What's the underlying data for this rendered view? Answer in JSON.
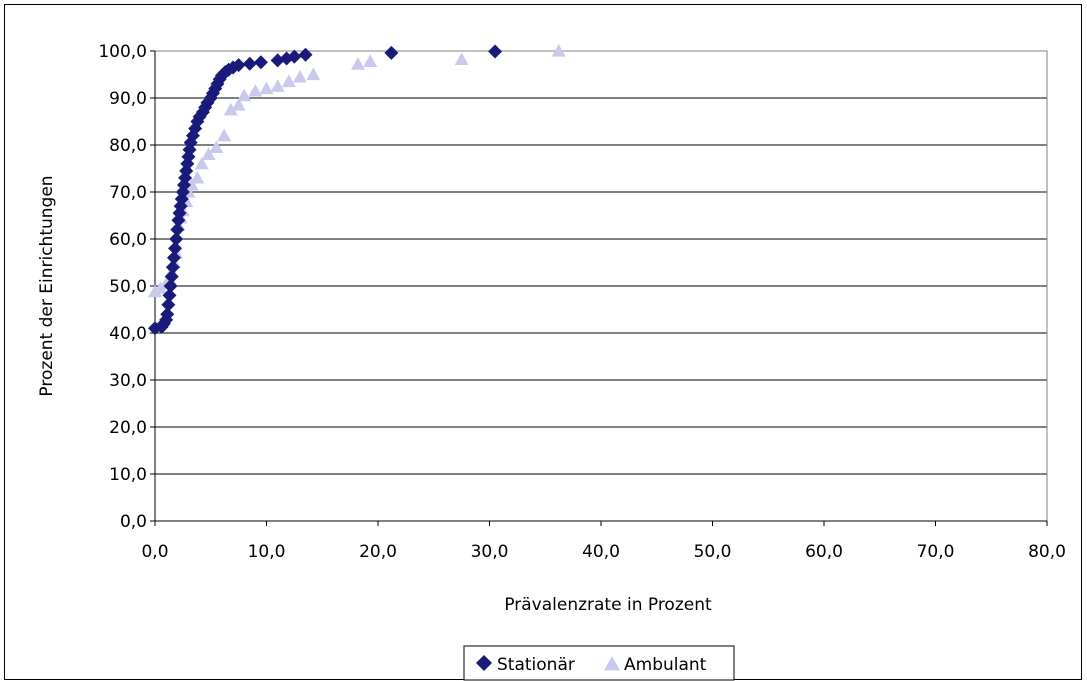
{
  "chart_data": {
    "type": "scatter",
    "title": "",
    "xlabel": "Prävalenzrate in Prozent",
    "ylabel": "Prozent der Einrichtungen",
    "xlim": [
      0,
      80
    ],
    "ylim": [
      0,
      100
    ],
    "x_ticks": [
      "0,0",
      "10,0",
      "20,0",
      "30,0",
      "40,0",
      "50,0",
      "60,0",
      "70,0",
      "80,0"
    ],
    "y_ticks": [
      "0,0",
      "10,0",
      "20,0",
      "30,0",
      "40,0",
      "50,0",
      "60,0",
      "70,0",
      "80,0",
      "90,0",
      "100,0"
    ],
    "grid": "horizontal",
    "legend_position": "bottom",
    "series": [
      {
        "name": "Stationär",
        "marker": "diamond",
        "color": "#1a1a7a",
        "points": [
          [
            0.0,
            41.0
          ],
          [
            0.6,
            41.3
          ],
          [
            0.8,
            42.0
          ],
          [
            1.0,
            42.8
          ],
          [
            1.1,
            44.0
          ],
          [
            1.2,
            46.0
          ],
          [
            1.3,
            48.0
          ],
          [
            1.4,
            50.0
          ],
          [
            1.5,
            52.0
          ],
          [
            1.6,
            54.0
          ],
          [
            1.7,
            56.0
          ],
          [
            1.8,
            58.0
          ],
          [
            1.9,
            60.0
          ],
          [
            2.0,
            62.0
          ],
          [
            2.1,
            64.0
          ],
          [
            2.2,
            65.5
          ],
          [
            2.3,
            67.0
          ],
          [
            2.4,
            68.5
          ],
          [
            2.5,
            70.0
          ],
          [
            2.6,
            71.5
          ],
          [
            2.7,
            73.0
          ],
          [
            2.8,
            74.5
          ],
          [
            2.9,
            76.0
          ],
          [
            3.0,
            77.5
          ],
          [
            3.1,
            79.0
          ],
          [
            3.2,
            80.5
          ],
          [
            3.4,
            82.0
          ],
          [
            3.6,
            83.5
          ],
          [
            3.8,
            85.0
          ],
          [
            4.0,
            86.0
          ],
          [
            4.3,
            87.0
          ],
          [
            4.5,
            88.0
          ],
          [
            4.7,
            89.0
          ],
          [
            5.0,
            90.0
          ],
          [
            5.2,
            91.0
          ],
          [
            5.4,
            92.0
          ],
          [
            5.6,
            93.0
          ],
          [
            5.8,
            94.0
          ],
          [
            6.0,
            94.8
          ],
          [
            6.3,
            95.5
          ],
          [
            6.6,
            96.0
          ],
          [
            7.0,
            96.5
          ],
          [
            7.5,
            97.0
          ],
          [
            8.5,
            97.3
          ],
          [
            9.5,
            97.6
          ],
          [
            11.0,
            98.0
          ],
          [
            11.8,
            98.4
          ],
          [
            12.5,
            98.8
          ],
          [
            13.5,
            99.2
          ],
          [
            21.2,
            99.6
          ],
          [
            30.5,
            99.9
          ]
        ]
      },
      {
        "name": "Ambulant",
        "marker": "triangle",
        "color": "#c9c9ee",
        "points": [
          [
            0.0,
            48.8
          ],
          [
            0.5,
            49.5
          ],
          [
            1.0,
            50.5
          ],
          [
            1.3,
            51.5
          ],
          [
            1.5,
            53.0
          ],
          [
            1.7,
            55.0
          ],
          [
            1.9,
            57.0
          ],
          [
            2.1,
            63.0
          ],
          [
            2.3,
            64.5
          ],
          [
            2.5,
            66.0
          ],
          [
            2.8,
            68.0
          ],
          [
            3.0,
            70.0
          ],
          [
            3.3,
            71.5
          ],
          [
            3.8,
            73.0
          ],
          [
            4.2,
            76.0
          ],
          [
            4.8,
            78.0
          ],
          [
            5.5,
            79.5
          ],
          [
            6.2,
            82.0
          ],
          [
            6.8,
            87.5
          ],
          [
            7.5,
            88.5
          ],
          [
            8.0,
            90.5
          ],
          [
            9.0,
            91.5
          ],
          [
            10.0,
            92.0
          ],
          [
            11.0,
            92.5
          ],
          [
            12.0,
            93.5
          ],
          [
            13.0,
            94.5
          ],
          [
            14.2,
            95.0
          ],
          [
            18.2,
            97.2
          ],
          [
            19.3,
            97.8
          ],
          [
            27.5,
            98.2
          ],
          [
            36.2,
            100.0
          ]
        ]
      }
    ]
  }
}
